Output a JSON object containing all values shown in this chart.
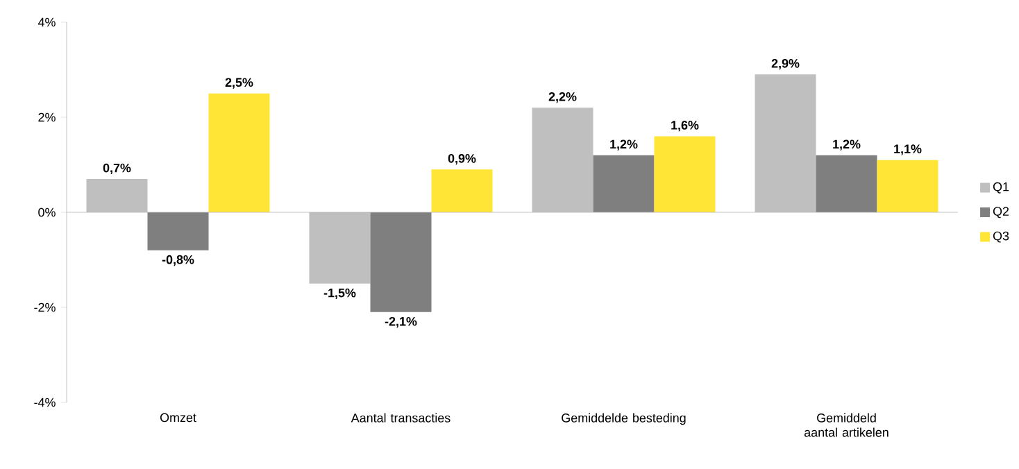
{
  "chart_data": {
    "type": "bar",
    "categories": [
      "Omzet",
      "Aantal transacties",
      "Gemiddelde besteding",
      "Gemiddeld aantal artikelen"
    ],
    "series": [
      {
        "name": "Q1",
        "color": "#bfbfbf",
        "values": [
          0.7,
          -1.5,
          2.2,
          2.9
        ],
        "value_labels": [
          "0,7%",
          "-1,5%",
          "2,2%",
          "2,9%"
        ]
      },
      {
        "name": "Q2",
        "color": "#7f7f7f",
        "values": [
          -0.8,
          -2.1,
          1.2,
          1.2
        ],
        "value_labels": [
          "-0,8%",
          "-2,1%",
          "1,2%",
          "1,2%"
        ]
      },
      {
        "name": "Q3",
        "color": "#ffe536",
        "values": [
          2.5,
          0.9,
          1.6,
          1.1
        ],
        "value_labels": [
          "2,5%",
          "0,9%",
          "1,6%",
          "1,1%"
        ]
      }
    ],
    "ylim": [
      -4,
      4
    ],
    "yticks": [
      {
        "value": -4,
        "label": "-4%"
      },
      {
        "value": -2,
        "label": "-2%"
      },
      {
        "value": 0,
        "label": "0%"
      },
      {
        "value": 2,
        "label": "2%"
      },
      {
        "value": 4,
        "label": "4%"
      }
    ],
    "legend": "right"
  }
}
